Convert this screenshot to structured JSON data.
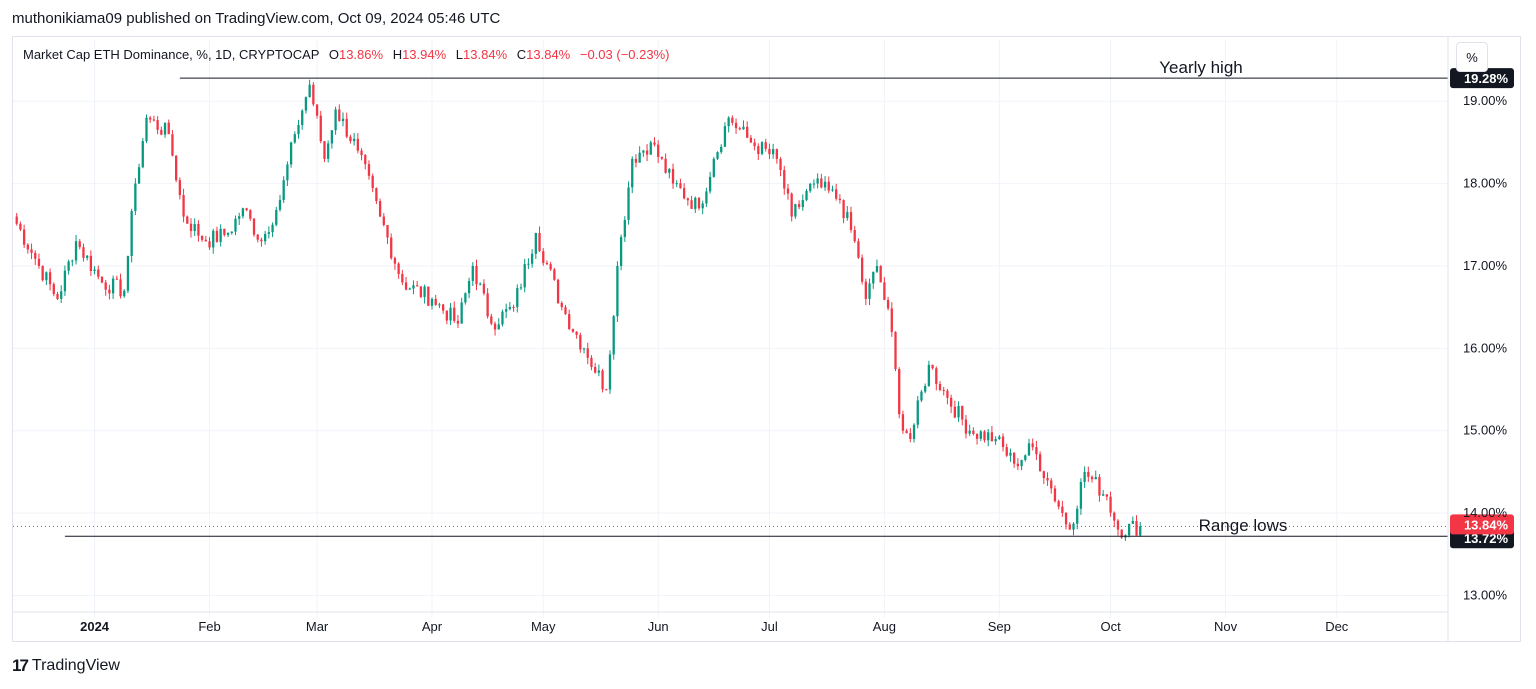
{
  "publisher_line": "muthonikiama09 published on TradingView.com, Oct 09, 2024 05:46 UTC",
  "legend": {
    "title": "Market Cap ETH Dominance, %, 1D, CRYPTOCAP",
    "open_label": "O",
    "open": "13.86%",
    "high_label": "H",
    "high": "13.94%",
    "low_label": "L",
    "low": "13.84%",
    "close_label": "C",
    "close": "13.84%",
    "change": "−0.03 (−0.23%)"
  },
  "scale_button": "%",
  "footer": {
    "logo_mark": "17",
    "brand": "TradingView"
  },
  "colors": {
    "up": "#089981",
    "down": "#f23645",
    "annotation_line": "#131722",
    "last_price": "#f23645"
  },
  "chart_data": {
    "type": "candlestick",
    "y_axis": {
      "min": 12.8,
      "max": 19.5,
      "ticks": [
        "13.00%",
        "14.00%",
        "15.00%",
        "16.00%",
        "17.00%",
        "18.00%",
        "19.00%"
      ],
      "tick_values": [
        13,
        14,
        15,
        16,
        17,
        18,
        19
      ]
    },
    "x_axis": {
      "start": "2023-12-10",
      "end": "2024-12-31",
      "ticks": [
        {
          "label": "2024",
          "date": "2024-01-01"
        },
        {
          "label": "Feb",
          "date": "2024-02-01"
        },
        {
          "label": "Mar",
          "date": "2024-03-01"
        },
        {
          "label": "Apr",
          "date": "2024-04-01"
        },
        {
          "label": "May",
          "date": "2024-05-01"
        },
        {
          "label": "Jun",
          "date": "2024-06-01"
        },
        {
          "label": "Jul",
          "date": "2024-07-01"
        },
        {
          "label": "Aug",
          "date": "2024-08-01"
        },
        {
          "label": "Sep",
          "date": "2024-09-01"
        },
        {
          "label": "Oct",
          "date": "2024-10-01"
        },
        {
          "label": "Nov",
          "date": "2024-11-01"
        },
        {
          "label": "Dec",
          "date": "2024-12-01"
        }
      ]
    },
    "series_close": [
      {
        "date": "2023-12-10",
        "close": 17.6
      },
      {
        "date": "2023-12-17",
        "close": 17.0
      },
      {
        "date": "2023-12-22",
        "close": 16.6
      },
      {
        "date": "2023-12-27",
        "close": 17.3
      },
      {
        "date": "2024-01-03",
        "close": 16.8
      },
      {
        "date": "2024-01-09",
        "close": 16.7
      },
      {
        "date": "2024-01-12",
        "close": 18.0
      },
      {
        "date": "2024-01-15",
        "close": 18.8
      },
      {
        "date": "2024-01-21",
        "close": 18.6
      },
      {
        "date": "2024-01-25",
        "close": 17.6
      },
      {
        "date": "2024-01-31",
        "close": 17.3
      },
      {
        "date": "2024-02-06",
        "close": 17.4
      },
      {
        "date": "2024-02-10",
        "close": 17.7
      },
      {
        "date": "2024-02-15",
        "close": 17.3
      },
      {
        "date": "2024-02-20",
        "close": 17.8
      },
      {
        "date": "2024-02-24",
        "close": 18.6
      },
      {
        "date": "2024-02-28",
        "close": 19.2
      },
      {
        "date": "2024-03-03",
        "close": 18.3
      },
      {
        "date": "2024-03-06",
        "close": 18.9
      },
      {
        "date": "2024-03-12",
        "close": 18.4
      },
      {
        "date": "2024-03-18",
        "close": 17.6
      },
      {
        "date": "2024-03-24",
        "close": 16.8
      },
      {
        "date": "2024-04-01",
        "close": 16.6
      },
      {
        "date": "2024-04-08",
        "close": 16.3
      },
      {
        "date": "2024-04-12",
        "close": 17.0
      },
      {
        "date": "2024-04-17",
        "close": 16.3
      },
      {
        "date": "2024-04-23",
        "close": 16.5
      },
      {
        "date": "2024-04-29",
        "close": 17.4
      },
      {
        "date": "2024-05-06",
        "close": 16.5
      },
      {
        "date": "2024-05-12",
        "close": 16.0
      },
      {
        "date": "2024-05-18",
        "close": 15.5
      },
      {
        "date": "2024-05-21",
        "close": 17.0
      },
      {
        "date": "2024-05-25",
        "close": 18.3
      },
      {
        "date": "2024-05-30",
        "close": 18.5
      },
      {
        "date": "2024-06-05",
        "close": 18.0
      },
      {
        "date": "2024-06-12",
        "close": 17.7
      },
      {
        "date": "2024-06-16",
        "close": 18.3
      },
      {
        "date": "2024-06-20",
        "close": 18.8
      },
      {
        "date": "2024-06-26",
        "close": 18.5
      },
      {
        "date": "2024-07-03",
        "close": 18.3
      },
      {
        "date": "2024-07-07",
        "close": 17.6
      },
      {
        "date": "2024-07-13",
        "close": 18.0
      },
      {
        "date": "2024-07-20",
        "close": 17.8
      },
      {
        "date": "2024-07-24",
        "close": 17.3
      },
      {
        "date": "2024-07-27",
        "close": 16.6
      },
      {
        "date": "2024-07-30",
        "close": 17.0
      },
      {
        "date": "2024-08-03",
        "close": 16.2
      },
      {
        "date": "2024-08-05",
        "close": 15.2
      },
      {
        "date": "2024-08-08",
        "close": 14.9
      },
      {
        "date": "2024-08-13",
        "close": 15.8
      },
      {
        "date": "2024-08-18",
        "close": 15.4
      },
      {
        "date": "2024-08-24",
        "close": 15.0
      },
      {
        "date": "2024-08-31",
        "close": 14.9
      },
      {
        "date": "2024-09-05",
        "close": 14.6
      },
      {
        "date": "2024-09-10",
        "close": 14.8
      },
      {
        "date": "2024-09-15",
        "close": 14.3
      },
      {
        "date": "2024-09-20",
        "close": 13.8
      },
      {
        "date": "2024-09-24",
        "close": 14.5
      },
      {
        "date": "2024-09-30",
        "close": 14.2
      },
      {
        "date": "2024-10-03",
        "close": 13.8
      },
      {
        "date": "2024-10-09",
        "close": 13.84
      }
    ],
    "horizontal_lines": [
      {
        "label": "Yearly high",
        "value": 19.28,
        "value_label": "19.28%",
        "from_date": "2024-01-24"
      },
      {
        "label": "Range lows",
        "value": 13.72,
        "value_label": "13.72%",
        "from_date": "2023-12-24"
      }
    ],
    "last_price": {
      "value": 13.84,
      "value_label": "13.84%"
    },
    "grid": true
  }
}
